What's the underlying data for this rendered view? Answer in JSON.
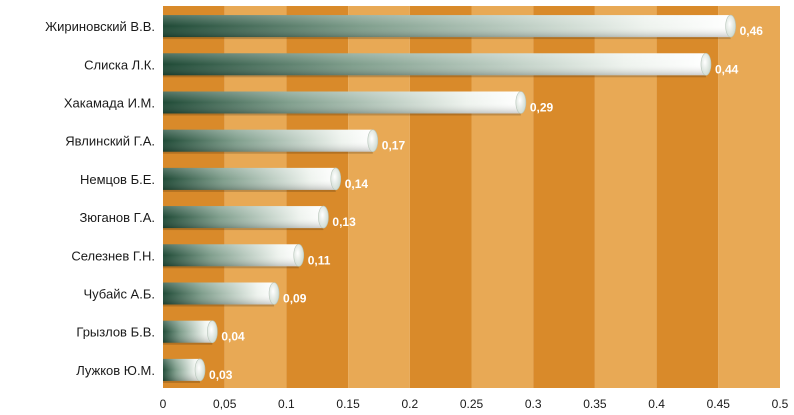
{
  "chart_data": {
    "type": "bar",
    "orientation": "horizontal",
    "categories": [
      "Жириновский В.В.",
      "Слиска Л.К.",
      "Хакамада И.М.",
      "Явлинский Г.А.",
      "Немцов Б.Е.",
      "Зюганов Г.А.",
      "Селезнев Г.Н.",
      "Чубайс А.Б.",
      "Грызлов Б.В.",
      "Лужков Ю.М."
    ],
    "values": [
      0.46,
      0.44,
      0.29,
      0.17,
      0.14,
      0.13,
      0.11,
      0.09,
      0.04,
      0.03
    ],
    "data_labels": [
      "0,46",
      "0,44",
      "0,29",
      "0,17",
      "0,14",
      "0,13",
      "0,11",
      "0,09",
      "0,04",
      "0,03"
    ],
    "xticks": [
      0,
      0.05,
      0.1,
      0.15,
      0.2,
      0.25,
      0.3,
      0.35,
      0.4,
      0.45,
      0.5
    ],
    "xtick_labels": [
      "0",
      "0,05",
      "0.1",
      "0.15",
      "0.2",
      "0.25",
      "0.3",
      "0.35",
      "0.4",
      "0.45",
      "0.5"
    ],
    "xlim": [
      0,
      0.5
    ],
    "title": "",
    "xlabel": "",
    "ylabel": "",
    "grid": "alternating vertical bands",
    "legend": "none",
    "colors": {
      "band_dark": "#d98a2a",
      "band_light": "#e8a955",
      "bar_dark": "#1f4a36",
      "bar_light": "#ffffff"
    }
  }
}
